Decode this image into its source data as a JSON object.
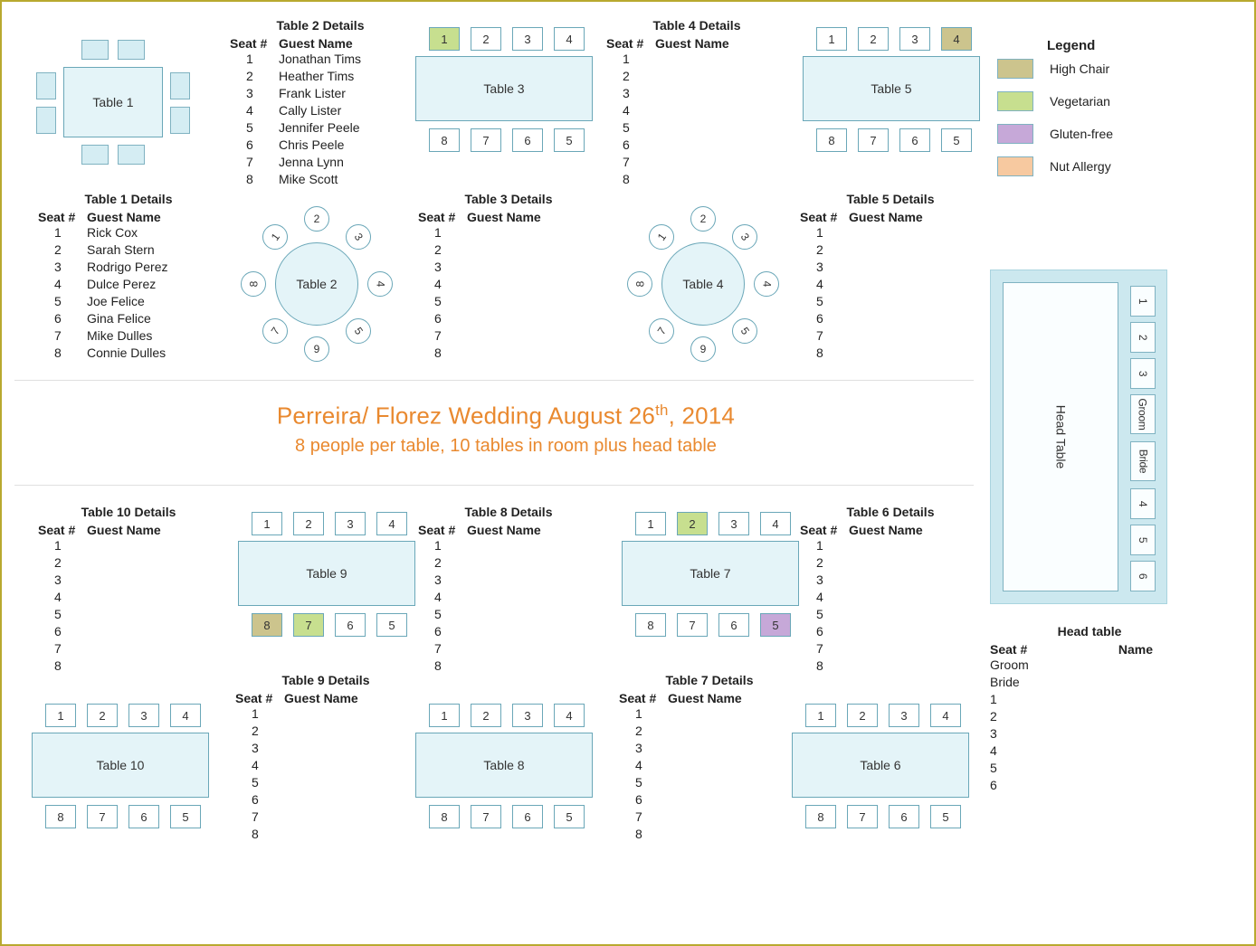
{
  "colors": {
    "page_border": "#b8a92f",
    "table_fill": "#e4f4f8",
    "table_border": "#6aa7b8",
    "seat_fill": "#ffffff",
    "seat_border": "#6aa7b8",
    "chair_fill": "#d5edf3",
    "head_bg": "#cce8ef",
    "title": "#e9892f",
    "high_chair": "#ccc48d",
    "vegetarian": "#c7df8f",
    "gluten_free": "#c6a8d8",
    "nut_allergy": "#f7c9a0"
  },
  "title": {
    "main_prefix": "Perreira/ Florez Wedding August 26",
    "main_suffix": "th",
    "main_year": ", 2014",
    "sub": "8 people per table, 10 tables in room plus head table"
  },
  "legend": {
    "title": "Legend",
    "items": [
      {
        "label": "High Chair",
        "color_class": "c-high"
      },
      {
        "label": "Vegetarian",
        "color_class": "c-veg"
      },
      {
        "label": "Gluten-free",
        "color_class": "c-glut"
      },
      {
        "label": "Nut Allergy",
        "color_class": "c-nut"
      }
    ]
  },
  "details_header": {
    "seat": "Seat #",
    "name": "Guest Name"
  },
  "tables": {
    "t1": {
      "title": "Table 1 Details",
      "label": "Table 1",
      "guests": [
        "Rick Cox",
        "Sarah Stern",
        "Rodrigo Perez",
        "Dulce Perez",
        "Joe Felice",
        "Gina Felice",
        "Mike Dulles",
        "Connie Dulles"
      ]
    },
    "t2": {
      "title": "Table 2 Details",
      "label": "Table 2",
      "guests": [
        "Jonathan Tims",
        "Heather Tims",
        "Frank Lister",
        "Cally Lister",
        "Jennifer Peele",
        "Chris Peele",
        "Jenna  Lynn",
        "Mike Scott"
      ],
      "special_seats": {
        "2": "c-glut",
        "8": "c-veg"
      }
    },
    "t3": {
      "title": "Table 3 Details",
      "label": "Table 3",
      "guests": [
        "",
        "",
        "",
        "",
        "",
        "",
        "",
        ""
      ],
      "special_seats": {
        "1": "c-veg"
      }
    },
    "t4": {
      "title": "Table 4 Details",
      "label": "Table 4",
      "guests": [
        "",
        "",
        "",
        "",
        "",
        "",
        "",
        ""
      ],
      "special_seats": {
        "6": "c-nut"
      }
    },
    "t5": {
      "title": "Table 5 Details",
      "label": "Table 5",
      "guests": [
        "",
        "",
        "",
        "",
        "",
        "",
        "",
        ""
      ],
      "special_seats": {
        "4": "c-high"
      }
    },
    "t6": {
      "title": "Table 6 Details",
      "label": "Table 6",
      "guests": [
        "",
        "",
        "",
        "",
        "",
        "",
        "",
        ""
      ]
    },
    "t7": {
      "title": "Table 7 Details",
      "label": "Table 7",
      "guests": [
        "",
        "",
        "",
        "",
        "",
        "",
        "",
        ""
      ],
      "special_seats": {
        "2": "c-veg",
        "5": "c-glut"
      }
    },
    "t8": {
      "title": "Table 8 Details",
      "label": "Table 8",
      "guests": [
        "",
        "",
        "",
        "",
        "",
        "",
        "",
        ""
      ]
    },
    "t9": {
      "title": "Table 9 Details",
      "label": "Table 9",
      "guests": [
        "",
        "",
        "",
        "",
        "",
        "",
        "",
        ""
      ],
      "special_seats": {
        "7": "c-veg",
        "8": "c-high"
      }
    },
    "t10": {
      "title": "Table 10 Details",
      "label": "Table 10",
      "guests": [
        "",
        "",
        "",
        "",
        "",
        "",
        "",
        ""
      ]
    }
  },
  "head": {
    "title": "Head table",
    "label": "Head Table",
    "hdr_seat": "Seat #",
    "hdr_name": "Name",
    "seats": [
      "1",
      "2",
      "3",
      "Groom",
      "Bride",
      "4",
      "5",
      "6"
    ],
    "rows": [
      "Groom",
      "Bride",
      "1",
      "2",
      "3",
      "4",
      "5",
      "6"
    ]
  }
}
